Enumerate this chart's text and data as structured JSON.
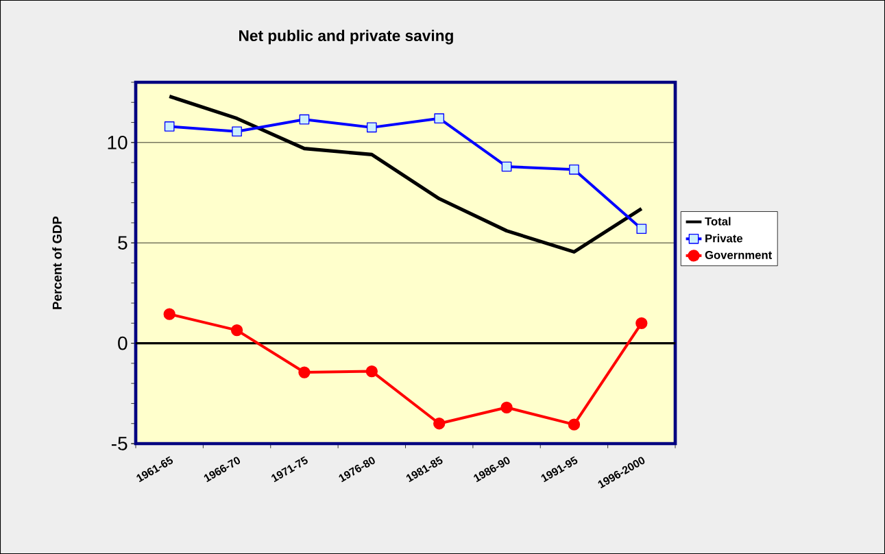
{
  "chart_data": {
    "type": "line",
    "title": "Net public and private saving",
    "ylabel": "Percent of GDP",
    "categories": [
      "1961-65",
      "1966-70",
      "1971-75",
      "1976-80",
      "1981-85",
      "1986-90",
      "1991-95",
      "1996-2000"
    ],
    "series": [
      {
        "name": "Total",
        "color": "#000000",
        "marker": "none",
        "values": [
          12.3,
          11.2,
          9.7,
          9.4,
          7.2,
          5.6,
          4.55,
          6.7
        ]
      },
      {
        "name": "Private",
        "color": "#0000ff",
        "marker": "square",
        "values": [
          10.8,
          10.55,
          11.15,
          10.75,
          11.2,
          8.8,
          8.65,
          5.7
        ]
      },
      {
        "name": "Government",
        "color": "#ff0000",
        "marker": "circle",
        "values": [
          1.45,
          0.65,
          -1.45,
          -1.4,
          -4.0,
          -3.2,
          -4.05,
          1.0
        ]
      }
    ],
    "ylim": [
      -5,
      13
    ],
    "yticks": [
      -5,
      0,
      5,
      10
    ],
    "grid": "y",
    "legend": "right",
    "ref_lines": [
      {
        "axis": "y",
        "value": 0,
        "color": "#000000"
      }
    ]
  }
}
